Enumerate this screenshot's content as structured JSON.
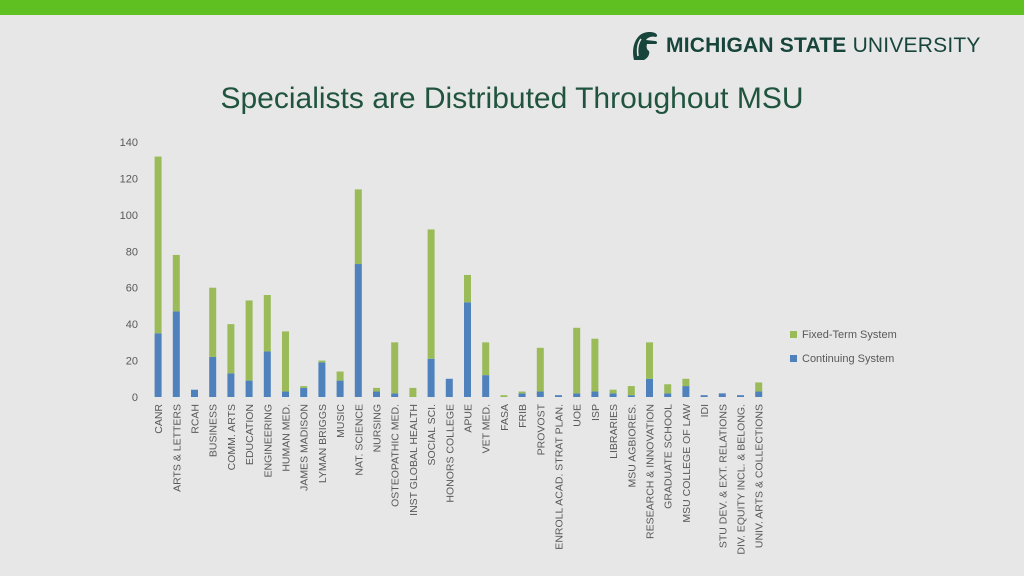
{
  "header": {
    "brand_bold": "MICHIGAN STATE",
    "brand_light": "UNIVERSITY",
    "logo_icon": "spartan-helmet-icon"
  },
  "page": {
    "title": "Specialists are Distributed Throughout MSU"
  },
  "colors": {
    "top_bar": "#5fc022",
    "brand": "#18453b",
    "fixed_term": "#9bbb59",
    "continuing": "#4f81bd",
    "text": "#595959",
    "background": "#e7e7e7"
  },
  "chart_data": {
    "type": "bar",
    "stacked": true,
    "title": "Specialists are Distributed Throughout MSU",
    "ylim": [
      0,
      140
    ],
    "yticks": [
      0,
      20,
      40,
      60,
      80,
      100,
      120,
      140
    ],
    "grid": false,
    "legend_position": "right",
    "categories": [
      "CANR",
      "ARTS & LETTERS",
      "RCAH",
      "BUSINESS",
      "COMM. ARTS",
      "EDUCATION",
      "ENGINEERING",
      "HUMAN MED.",
      "JAMES MADISON",
      "LYMAN BRIGGS",
      "MUSIC",
      "NAT. SCIENCE",
      "NURSING",
      "OSTEOPATHIC MED.",
      "INST GLOBAL HEALTH",
      "SOCIAL SCI.",
      "HONORS COLLEGE",
      "APUE",
      "VET MED.",
      "FASA",
      "FRIB",
      "PROVOST",
      "ENROLL ACAD. STRAT PLAN.",
      "UOE",
      "ISP",
      "LIBRARIES",
      "MSU AGBIORES.",
      "RESEARCH & INNOVATION",
      "GRADUATE SCHOOL",
      "MSU COLLEGE OF LAW",
      "IDI",
      "STU DEV. & EXT. RELATIONS",
      "DIV. EQUITY INCL. & BELONG.",
      "UNIV. ARTS & COLLECTIONS"
    ],
    "series": [
      {
        "name": "Continuing System",
        "color": "#4f81bd",
        "values": [
          35,
          47,
          4,
          22,
          13,
          9,
          25,
          3,
          5,
          19,
          9,
          73,
          3,
          2,
          0,
          21,
          10,
          52,
          12,
          0,
          2,
          3,
          1,
          2,
          3,
          2,
          1,
          10,
          2,
          6,
          1,
          2,
          1,
          3
        ]
      },
      {
        "name": "Fixed-Term System",
        "color": "#9bbb59",
        "values": [
          97,
          31,
          0,
          38,
          27,
          44,
          31,
          33,
          1,
          1,
          5,
          41,
          2,
          28,
          5,
          71,
          0,
          15,
          18,
          1,
          1,
          24,
          0,
          36,
          29,
          2,
          5,
          20,
          5,
          4,
          0,
          0,
          0,
          5
        ]
      }
    ],
    "legend_order": [
      "Fixed-Term System",
      "Continuing System"
    ]
  }
}
